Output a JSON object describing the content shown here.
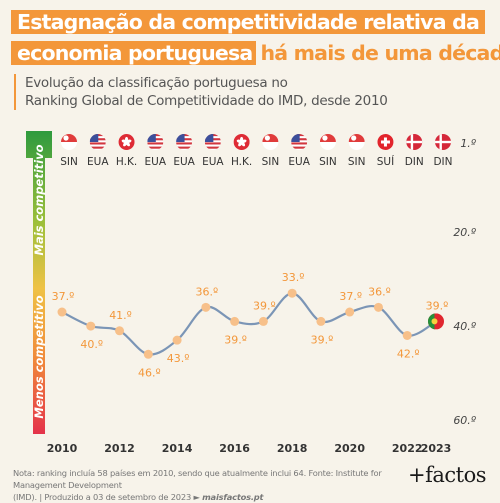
{
  "header": {
    "title_part1": "Estagnação da competitividade relativa da",
    "title_part2": "economia portuguesa",
    "title_part3": "há mais de uma década",
    "subtitle_line1": "Evolução da classificação portuguesa no",
    "subtitle_line2": "Ranking Global de Competitividade do IMD, desde 2010",
    "accent_color": "#f3973a"
  },
  "footnote": {
    "line1": "Nota: ranking incluía 58 países em 2010, sendo que atualmente inclui 64. Fonte: Institute for Management Development",
    "line2": "(IMD). | Produzido a 03 de setembro de 2023 ►",
    "site": "maisfactos.pt"
  },
  "logo": "+factos",
  "chart_data": {
    "type": "line",
    "x": [
      2010,
      2011,
      2012,
      2013,
      2014,
      2015,
      2016,
      2017,
      2018,
      2019,
      2020,
      2021,
      2022,
      2023
    ],
    "values": [
      37,
      40,
      41,
      46,
      43,
      36,
      39,
      39,
      33,
      39,
      37,
      36,
      42,
      39
    ],
    "point_labels": [
      "37.º",
      "40.º",
      "41.º",
      "46.º",
      "43.º",
      "36.º",
      "39.º",
      "39.º",
      "33.º",
      "39.º",
      "37.º",
      "36.º",
      "42.º",
      "39.º"
    ],
    "x_ticks": [
      "2010",
      "2012",
      "2014",
      "2016",
      "2018",
      "2020",
      "2022",
      "2023"
    ],
    "y_ticks": [
      "1.º",
      "20.º",
      "40.º",
      "60.º"
    ],
    "y_tick_values": [
      1,
      20,
      40,
      60
    ],
    "ylim": [
      1,
      60
    ],
    "y_inverted": true,
    "leaders": [
      {
        "code": "SIN",
        "flag": "singapore"
      },
      {
        "code": "EUA",
        "flag": "usa"
      },
      {
        "code": "H.K.",
        "flag": "hong-kong"
      },
      {
        "code": "EUA",
        "flag": "usa"
      },
      {
        "code": "EUA",
        "flag": "usa"
      },
      {
        "code": "EUA",
        "flag": "usa"
      },
      {
        "code": "H.K.",
        "flag": "hong-kong"
      },
      {
        "code": "SIN",
        "flag": "singapore"
      },
      {
        "code": "EUA",
        "flag": "usa"
      },
      {
        "code": "SIN",
        "flag": "singapore"
      },
      {
        "code": "SIN",
        "flag": "singapore"
      },
      {
        "code": "SUÍ",
        "flag": "switzerland"
      },
      {
        "code": "DIN",
        "flag": "denmark"
      },
      {
        "code": "DIN",
        "flag": "denmark"
      }
    ],
    "arrow_top_label": "Mais competitivo",
    "arrow_bottom_label": "Menos competitivo",
    "line_color": "#7b95b6",
    "point_color": "#f7c08a",
    "label_color": "#f3973a",
    "last_point_flag": "portugal",
    "grid": false
  }
}
